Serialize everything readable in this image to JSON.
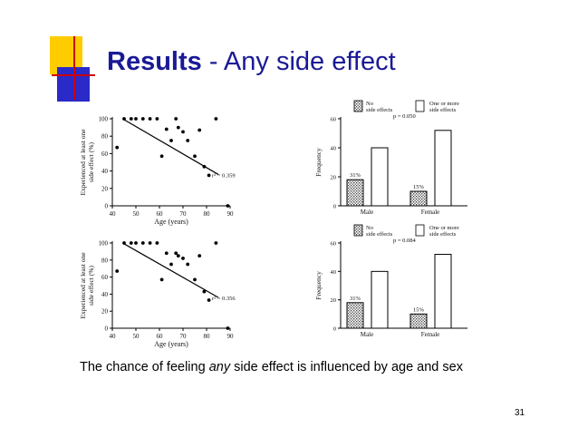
{
  "slide": {
    "title_bold": "Results",
    "title_rest": " - Any side effect",
    "caption_pre": "The chance of feeling ",
    "caption_em": "any",
    "caption_post": " side effect is influenced by age and sex",
    "page_number": "31",
    "colors": {
      "title": "#1a1a96",
      "accent_yellow": "#ffcc00",
      "accent_blue": "#2a2ac8",
      "accent_red": "#cc0000"
    }
  },
  "chart_data": [
    {
      "type": "scatter",
      "xlabel": "Age (years)",
      "ylabel_lines": [
        "Experienced at least one",
        "side effect (%)"
      ],
      "xlim": [
        40,
        90
      ],
      "ylim": [
        0,
        100
      ],
      "xticks": [
        40,
        50,
        60,
        70,
        80,
        90
      ],
      "yticks": [
        0,
        20,
        40,
        60,
        80,
        100
      ],
      "annotation": "r² = 0.359",
      "points": [
        [
          42,
          67
        ],
        [
          45,
          100
        ],
        [
          48,
          100
        ],
        [
          50,
          100
        ],
        [
          53,
          100
        ],
        [
          56,
          100
        ],
        [
          59,
          100
        ],
        [
          61,
          57
        ],
        [
          63,
          88
        ],
        [
          65,
          75
        ],
        [
          67,
          100
        ],
        [
          68,
          90
        ],
        [
          70,
          85
        ],
        [
          72,
          75
        ],
        [
          75,
          57
        ],
        [
          77,
          87
        ],
        [
          79,
          45
        ],
        [
          81,
          35
        ],
        [
          84,
          100
        ],
        [
          89,
          0
        ]
      ],
      "trendline": [
        [
          45,
          99
        ],
        [
          85,
          36
        ]
      ]
    },
    {
      "type": "bar",
      "categories": [
        "Male",
        "Female"
      ],
      "series": [
        {
          "name": "No side effects",
          "values": [
            18,
            10
          ],
          "pattern": "hatched"
        },
        {
          "name": "One or more side effects",
          "values": [
            40,
            52
          ],
          "pattern": "open"
        }
      ],
      "bar_labels": [
        "31%",
        "15%"
      ],
      "ylabel": "Frequency",
      "ylim": [
        0,
        60
      ],
      "yticks": [
        0,
        20,
        40,
        60
      ],
      "annotation": "p = 0.050",
      "legend": "top"
    },
    {
      "type": "scatter",
      "xlabel": "Age (years)",
      "ylabel_lines": [
        "Experienced at least one",
        "side effect (%)"
      ],
      "xlim": [
        40,
        90
      ],
      "ylim": [
        0,
        100
      ],
      "xticks": [
        40,
        50,
        60,
        70,
        80,
        90
      ],
      "yticks": [
        0,
        20,
        40,
        60,
        80,
        100
      ],
      "annotation": "r² = 0.356",
      "points": [
        [
          42,
          67
        ],
        [
          45,
          100
        ],
        [
          48,
          100
        ],
        [
          50,
          100
        ],
        [
          53,
          100
        ],
        [
          56,
          100
        ],
        [
          59,
          100
        ],
        [
          61,
          57
        ],
        [
          63,
          88
        ],
        [
          65,
          75
        ],
        [
          67,
          88
        ],
        [
          68,
          85
        ],
        [
          70,
          82
        ],
        [
          72,
          75
        ],
        [
          75,
          57
        ],
        [
          77,
          85
        ],
        [
          79,
          43
        ],
        [
          81,
          33
        ],
        [
          84,
          100
        ],
        [
          89,
          0
        ]
      ],
      "trendline": [
        [
          45,
          99
        ],
        [
          85,
          36
        ]
      ]
    },
    {
      "type": "bar",
      "categories": [
        "Male",
        "Female"
      ],
      "series": [
        {
          "name": "No side effects",
          "values": [
            18,
            10
          ],
          "pattern": "hatched"
        },
        {
          "name": "One or more side effects",
          "values": [
            40,
            52
          ],
          "pattern": "open"
        }
      ],
      "bar_labels": [
        "31%",
        "15%"
      ],
      "ylabel": "Frequency",
      "ylim": [
        0,
        60
      ],
      "yticks": [
        0,
        20,
        40,
        60
      ],
      "annotation": "p = 0.084",
      "legend": "top"
    }
  ]
}
